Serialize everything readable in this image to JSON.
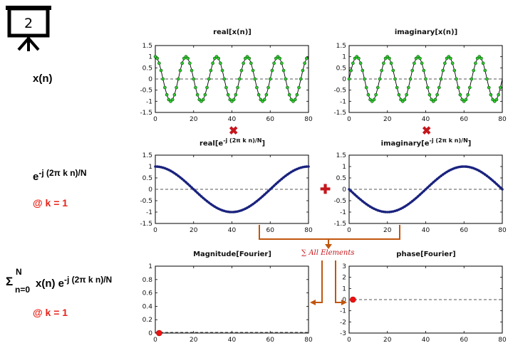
{
  "slide_number": "2",
  "left_labels": {
    "xn": "x(n)",
    "kernel_base": "e",
    "kernel_exp": "-j (2π k n)/N",
    "k_eq_1_a": "@ k = 1",
    "sum_sigma": "Σ",
    "sum_upper": "N",
    "sum_lower": "n=0",
    "sum_body": "x(n) e",
    "sum_exp": "-j (2π k n)/N",
    "k_eq_1_b": "@ k = 1"
  },
  "operators": {
    "multiply": "✖",
    "plus": "✚"
  },
  "sum_note": "∑ All Elements",
  "colors": {
    "accent_red": "#e8231a",
    "arrow_orange": "#c0560e",
    "wave_navy": "#1a237e",
    "marker_green": "#2ecc2e"
  },
  "chart_data": [
    {
      "id": "real-xn",
      "type": "line",
      "title": "real[x(n)]",
      "wave": "cos_k5",
      "style": "markers-green",
      "xlim": [
        0,
        80
      ],
      "ylim": [
        -1.5,
        1.5
      ],
      "xticks": [
        "0",
        "20",
        "40",
        "60",
        "80"
      ],
      "yticks": [
        "1.5",
        "1",
        "0.5",
        "0",
        "-0.5",
        "-1",
        "-1.5"
      ]
    },
    {
      "id": "imag-xn",
      "type": "line",
      "title": "imaginary[x(n)]",
      "wave": "sin_k5",
      "style": "markers-green",
      "xlim": [
        0,
        80
      ],
      "ylim": [
        -1.5,
        1.5
      ],
      "xticks": [
        "0",
        "20",
        "40",
        "60",
        "80"
      ],
      "yticks": [
        "1.5",
        "1",
        "0.5",
        "0",
        "-0.5",
        "-1",
        "-1.5"
      ]
    },
    {
      "id": "real-kernel",
      "type": "line",
      "title_main": "real[e",
      "title_sup": "-j (2π k n)/N",
      "title_end": "]",
      "wave": "cos_k1",
      "style": "dense-navy",
      "xlim": [
        0,
        80
      ],
      "ylim": [
        -1.5,
        1.5
      ],
      "xticks": [
        "0",
        "20",
        "40",
        "60",
        "80"
      ],
      "yticks": [
        "1.5",
        "1",
        "0.5",
        "0",
        "-0.5",
        "-1",
        "-1.5"
      ]
    },
    {
      "id": "imag-kernel",
      "type": "line",
      "title_main": "imaginary[e",
      "title_sup": "-j (2π k n)/N",
      "title_end": "]",
      "wave": "negsin_k1",
      "style": "dense-navy",
      "xlim": [
        0,
        80
      ],
      "ylim": [
        -1.5,
        1.5
      ],
      "xticks": [
        "0",
        "20",
        "40",
        "60",
        "80"
      ],
      "yticks": [
        "1.5",
        "1",
        "0.5",
        "0",
        "-0.5",
        "-1",
        "-1.5"
      ]
    },
    {
      "id": "magnitude",
      "type": "scatter",
      "title": "Magnitude[Fourier]",
      "points": [
        [
          2,
          0
        ]
      ],
      "xlim": [
        0,
        80
      ],
      "ylim": [
        0,
        1
      ],
      "xticks": [
        "0",
        "20",
        "40",
        "60",
        "80"
      ],
      "yticks": [
        "1",
        "0.8",
        "0.6",
        "0.4",
        "0.2",
        "0"
      ]
    },
    {
      "id": "phase",
      "type": "scatter",
      "title": "phase[Fourier]",
      "points": [
        [
          2,
          0
        ]
      ],
      "xlim": [
        0,
        80
      ],
      "ylim": [
        -3,
        3
      ],
      "xticks": [
        "0",
        "20",
        "40",
        "60",
        "80"
      ],
      "yticks": [
        "3",
        "2",
        "1",
        "0",
        "-1",
        "-2",
        "-3"
      ]
    }
  ]
}
